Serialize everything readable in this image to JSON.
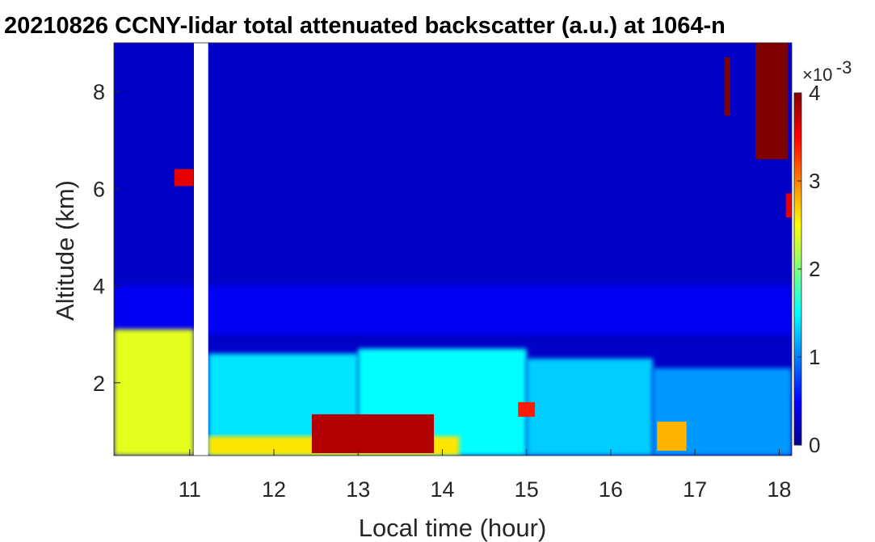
{
  "chart_data": {
    "type": "heatmap",
    "title": "20210826 CCNY-lidar total attenuated backscatter (a.u.) at 1064-n",
    "xlabel": "Local time (hour)",
    "ylabel": "Altitude (km)",
    "xlim": [
      10.1,
      18.15
    ],
    "ylim": [
      0.5,
      9.0
    ],
    "x_ticks": [
      11,
      12,
      13,
      14,
      15,
      16,
      17,
      18
    ],
    "y_ticks": [
      2,
      4,
      6,
      8
    ],
    "x_tick_labels": [
      "11",
      "12",
      "13",
      "14",
      "15",
      "16",
      "17",
      "18"
    ],
    "y_tick_labels": [
      "2",
      "4",
      "6",
      "8"
    ],
    "colormap": "jet",
    "colorbar": {
      "clim": [
        0,
        0.004
      ],
      "ticks": [
        0,
        1,
        2,
        3,
        4
      ],
      "tick_labels": [
        "0",
        "1",
        "2",
        "3",
        "4"
      ],
      "exponent_label": "×10",
      "exponent_power": "-3"
    },
    "data_gap": {
      "x_start": 11.05,
      "x_end": 11.22
    },
    "layers": [
      {
        "name": "aerosol-layer",
        "x_start": 10.1,
        "x_end": 11.05,
        "alt_bottom": 0.5,
        "alt_top": 3.1,
        "value": 0.0024
      },
      {
        "name": "aerosol-layer",
        "x_start": 11.22,
        "x_end": 13.0,
        "alt_bottom": 0.5,
        "alt_top": 2.6,
        "value": 0.0014
      },
      {
        "name": "aerosol-layer",
        "x_start": 13.0,
        "x_end": 15.0,
        "alt_bottom": 0.5,
        "alt_top": 2.7,
        "value": 0.0015
      },
      {
        "name": "aerosol-layer",
        "x_start": 15.0,
        "x_end": 16.5,
        "alt_bottom": 0.5,
        "alt_top": 2.5,
        "value": 0.0013
      },
      {
        "name": "aerosol-layer",
        "x_start": 16.5,
        "x_end": 18.15,
        "alt_bottom": 0.5,
        "alt_top": 2.3,
        "value": 0.0011
      },
      {
        "name": "near-surface-aerosol",
        "x_start": 11.22,
        "x_end": 14.2,
        "alt_bottom": 0.5,
        "alt_top": 0.9,
        "value": 0.0026
      },
      {
        "name": "elevated-aerosol",
        "x_start": 12.45,
        "x_end": 13.9,
        "alt_bottom": 0.55,
        "alt_top": 1.35,
        "value": 0.0038
      },
      {
        "name": "elevated-aerosol",
        "x_start": 14.9,
        "x_end": 15.1,
        "alt_bottom": 1.3,
        "alt_top": 1.6,
        "value": 0.0034
      },
      {
        "name": "elevated-aerosol",
        "x_start": 16.55,
        "x_end": 16.9,
        "alt_bottom": 0.6,
        "alt_top": 1.2,
        "value": 0.0028
      },
      {
        "name": "cloud",
        "x_start": 10.82,
        "x_end": 11.04,
        "alt_bottom": 6.05,
        "alt_top": 6.4,
        "value": 0.0036
      },
      {
        "name": "cloud",
        "x_start": 17.72,
        "x_end": 18.1,
        "alt_bottom": 6.6,
        "alt_top": 9.0,
        "value": 0.0045
      },
      {
        "name": "cloud",
        "x_start": 17.35,
        "x_end": 17.42,
        "alt_bottom": 7.5,
        "alt_top": 8.7,
        "value": 0.0042
      },
      {
        "name": "cloud",
        "x_start": 18.08,
        "x_end": 18.15,
        "alt_bottom": 5.4,
        "alt_top": 5.9,
        "value": 0.0036
      }
    ]
  }
}
